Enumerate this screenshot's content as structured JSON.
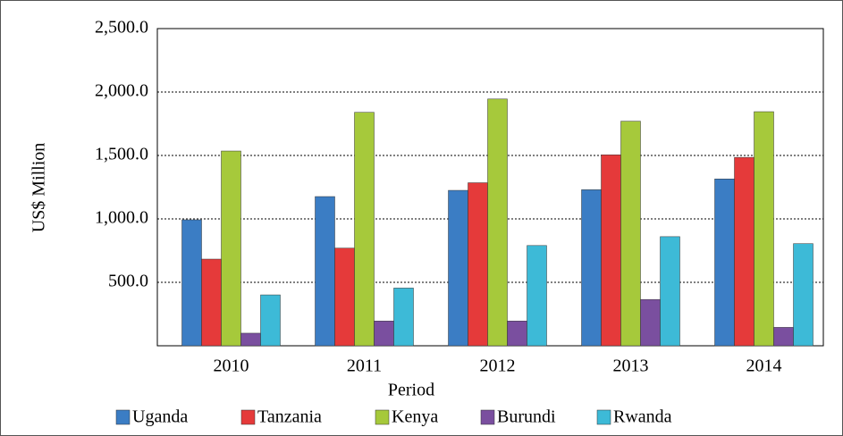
{
  "chart_data": {
    "type": "bar",
    "x_label": "Period",
    "y_label": "US$ Million",
    "categories": [
      "2010",
      "2011",
      "2012",
      "2013",
      "2014"
    ],
    "series": [
      {
        "name": "Uganda",
        "color": "#3b7dc4",
        "values": [
          993,
          1176,
          1225,
          1230,
          1315
        ]
      },
      {
        "name": "Tanzania",
        "color": "#e53a3a",
        "values": [
          683,
          770,
          1285,
          1505,
          1485
        ]
      },
      {
        "name": "Kenya",
        "color": "#a6c93b",
        "values": [
          1535,
          1840,
          1945,
          1770,
          1845
        ]
      },
      {
        "name": "Burundi",
        "color": "#7a4f9f",
        "values": [
          99,
          195,
          195,
          365,
          145
        ]
      },
      {
        "name": "Rwanda",
        "color": "#3dbad7",
        "values": [
          401,
          455,
          790,
          860,
          805
        ]
      }
    ],
    "ylim": [
      0,
      2500
    ],
    "yticks": [
      {
        "value": 500,
        "label": "500.0"
      },
      {
        "value": 1000,
        "label": "1,000.0"
      },
      {
        "value": 1500,
        "label": "1,500.0"
      },
      {
        "value": 2000,
        "label": "2,000.0"
      },
      {
        "value": 2500,
        "label": "2,500.0"
      }
    ],
    "grid": true,
    "legend": "bottom"
  }
}
